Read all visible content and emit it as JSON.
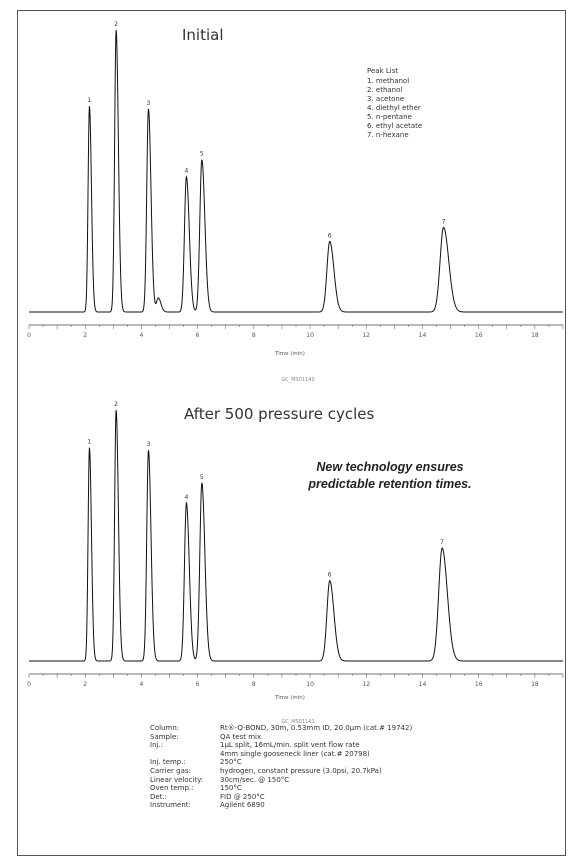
{
  "promo_text": [
    "New technology ensures",
    "predictable retention times."
  ],
  "legend": {
    "title": "Peak List",
    "items": [
      "1. methanol",
      "2. ethanol",
      "3. acetone",
      "4. diethyl ether",
      "5. n-pentane",
      "6. ethyl acetate",
      "7. n-hexane"
    ]
  },
  "conditions": [
    {
      "label": "Column:",
      "value": "Rt®-Q-BOND, 30m, 0.53mm ID, 20.0µm (cat.# 19742)"
    },
    {
      "label": "Sample:",
      "value": "QA test mix"
    },
    {
      "label": "Inj.:",
      "value": "1µL split, 16mL/min. split vent flow rate"
    },
    {
      "label": "",
      "value": "4mm single gooseneck liner (cat.# 20798)"
    },
    {
      "label": "Inj. temp.:",
      "value": "250°C"
    },
    {
      "label": "Carrier gas:",
      "value": "hydrogen, constant pressure (3.0psi, 20.7kPa)"
    },
    {
      "label": "Linear velocity:",
      "value": "30cm/sec. @ 150°C"
    },
    {
      "label": "Oven temp.:",
      "value": "150°C"
    },
    {
      "label": "Det.:",
      "value": "FID @ 250°C"
    },
    {
      "label": "Instrument:",
      "value": "Agilent 6890"
    }
  ],
  "chart_data": [
    {
      "type": "line",
      "title": "Initial",
      "xlabel": "Time (min)",
      "ylabel": "",
      "xlim": [
        0,
        19
      ],
      "xticks": [
        0,
        2,
        4,
        6,
        8,
        10,
        12,
        14,
        16,
        18
      ],
      "code": "GC_MS01140",
      "grid": false,
      "peaks": [
        {
          "label": "1",
          "x": 2.15,
          "height": 0.73
        },
        {
          "label": "2",
          "x": 3.1,
          "height": 1.0
        },
        {
          "label": "3",
          "x": 4.25,
          "height": 0.72
        },
        {
          "label": "",
          "x": 4.6,
          "height": 0.05
        },
        {
          "label": "4",
          "x": 5.6,
          "height": 0.48
        },
        {
          "label": "5",
          "x": 6.15,
          "height": 0.54
        },
        {
          "label": "6",
          "x": 10.7,
          "height": 0.25
        },
        {
          "label": "7",
          "x": 14.75,
          "height": 0.3
        }
      ]
    },
    {
      "type": "line",
      "title": "After 500 pressure cycles",
      "xlabel": "Time (min)",
      "ylabel": "",
      "xlim": [
        0,
        19
      ],
      "xticks": [
        0,
        2,
        4,
        6,
        8,
        10,
        12,
        14,
        16,
        18
      ],
      "code": "GC_MS01141",
      "grid": false,
      "peaks": [
        {
          "label": "1",
          "x": 2.15,
          "height": 0.85
        },
        {
          "label": "2",
          "x": 3.1,
          "height": 1.0
        },
        {
          "label": "3",
          "x": 4.25,
          "height": 0.84
        },
        {
          "label": "4",
          "x": 5.6,
          "height": 0.63
        },
        {
          "label": "5",
          "x": 6.15,
          "height": 0.71
        },
        {
          "label": "6",
          "x": 10.7,
          "height": 0.32
        },
        {
          "label": "7",
          "x": 14.7,
          "height": 0.45
        }
      ]
    }
  ]
}
